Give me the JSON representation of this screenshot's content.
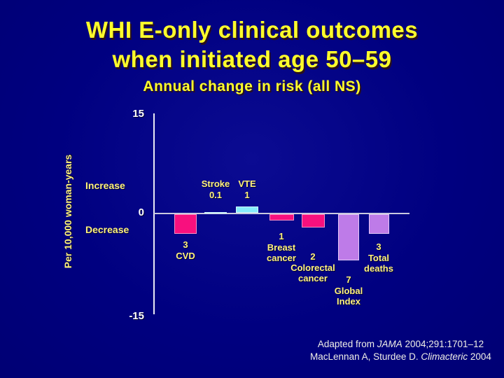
{
  "slide": {
    "title_line1": "WHI E-only clinical outcomes",
    "title_line2": "when initiated age 50–59",
    "subtitle": "Annual change in risk (all NS)"
  },
  "axis": {
    "y_label": "Per 10,000 woman-years",
    "tick_top": "15",
    "tick_zero": "0",
    "tick_bottom": "-15",
    "increase": "Increase",
    "decrease": "Decrease"
  },
  "citation": {
    "line1_prefix": "Adapted from ",
    "line1_italic": "JAMA",
    "line1_suffix": " 2004;291:1701–12",
    "line2_prefix": "MacLennan A, Sturdee D. ",
    "line2_italic": "Climacteric",
    "line2_suffix": " 2004"
  },
  "colors": {
    "background": "#000080",
    "title_yellow": "#FFFF2B",
    "label_yellow": "#FFF27D",
    "tick_white": "#FFFFFF",
    "magenta": "#F8107E",
    "magenta_border": "#FF8FC4",
    "cyan": "#86EBFC",
    "cyan_border": "#D2F8FF",
    "purple": "#BE7BE8",
    "purple_border": "#E3C8F8"
  },
  "chart_data": {
    "type": "bar",
    "title": "WHI E-only clinical outcomes when initiated age 50–59 — Annual change in risk (all NS)",
    "xlabel": "",
    "ylabel": "Per 10,000 woman-years",
    "ylim": [
      -15,
      15
    ],
    "yticks": [
      15,
      0,
      -15
    ],
    "grid": false,
    "legend": false,
    "categories": [
      "CVD",
      "Stroke",
      "VTE",
      "Breast cancer",
      "Colorectal cancer",
      "Global Index",
      "Total deaths"
    ],
    "values": [
      -3,
      0.1,
      1,
      -1,
      -2,
      -7,
      -3
    ],
    "bar_color_keys": [
      "magenta",
      "cyan",
      "cyan",
      "magenta",
      "magenta",
      "purple",
      "purple"
    ],
    "label_lines": [
      [
        "3",
        "CVD"
      ],
      [
        "Stroke",
        "0.1"
      ],
      [
        "VTE",
        "1"
      ],
      [
        "1",
        "Breast",
        "cancer"
      ],
      [
        "2",
        "Colorectal",
        "cancer"
      ],
      [
        "7",
        "Global",
        "Index"
      ],
      [
        "3",
        "Total",
        "deaths"
      ]
    ],
    "annotations": [
      "Increase",
      "Decrease"
    ]
  }
}
